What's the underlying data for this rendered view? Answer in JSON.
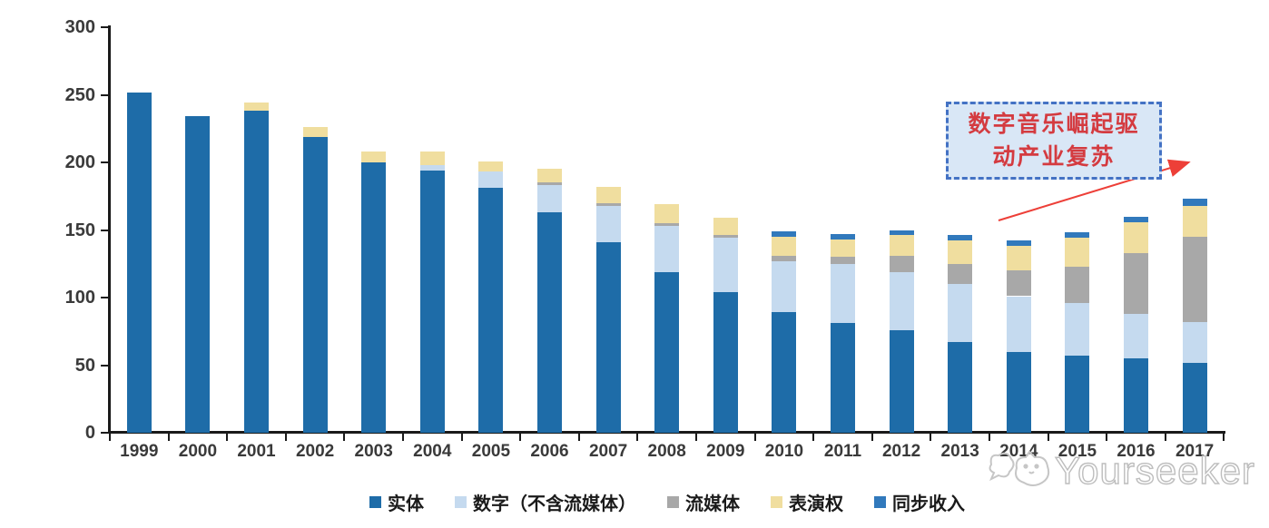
{
  "chart_data": {
    "type": "bar",
    "stacked": true,
    "title": "",
    "xlabel": "",
    "ylabel": "",
    "ylim": [
      0,
      300
    ],
    "yticks": [
      0,
      50,
      100,
      150,
      200,
      250,
      300
    ],
    "grid": false,
    "legend_position": "bottom",
    "categories": [
      "1999",
      "2000",
      "2001",
      "2002",
      "2003",
      "2004",
      "2005",
      "2006",
      "2007",
      "2008",
      "2009",
      "2010",
      "2011",
      "2012",
      "2013",
      "2014",
      "2015",
      "2016",
      "2017"
    ],
    "series": [
      {
        "name": "实体",
        "color": "#1E6CA8",
        "values": [
          252,
          234,
          238,
          219,
          200,
          194,
          181,
          163,
          141,
          119,
          104,
          89,
          81,
          76,
          67,
          60,
          57,
          55,
          52
        ]
      },
      {
        "name": "数字（不含流媒体）",
        "color": "#C5DAEF",
        "values": [
          0,
          0,
          0,
          0,
          0,
          4,
          12,
          20,
          27,
          34,
          40,
          38,
          44,
          43,
          43,
          41,
          39,
          33,
          30
        ]
      },
      {
        "name": "流媒体",
        "color": "#A8A8A8",
        "values": [
          0,
          0,
          0,
          0,
          0,
          0,
          0,
          2,
          2,
          2,
          2,
          4,
          5,
          12,
          15,
          19,
          27,
          45,
          63
        ]
      },
      {
        "name": "表演权",
        "color": "#F0DE9F",
        "values": [
          0,
          0,
          6,
          7,
          8,
          10,
          8,
          10,
          12,
          14,
          13,
          14,
          13,
          15,
          17,
          18,
          21,
          23,
          23
        ]
      },
      {
        "name": "同步收入",
        "color": "#3179BC",
        "values": [
          0,
          0,
          0,
          0,
          0,
          0,
          0,
          0,
          0,
          0,
          0,
          4,
          4,
          4,
          4,
          4,
          4,
          4,
          5
        ]
      }
    ]
  },
  "annotation": {
    "line1": "数字音乐崛起驱",
    "line2": "动产业复苏",
    "text_color": "#D43B40",
    "box_fill": "#D9E7F6",
    "box_border_color": "#4472C4",
    "arrow_color": "#ED3F38"
  },
  "watermark": {
    "text": "Yourseeker"
  }
}
